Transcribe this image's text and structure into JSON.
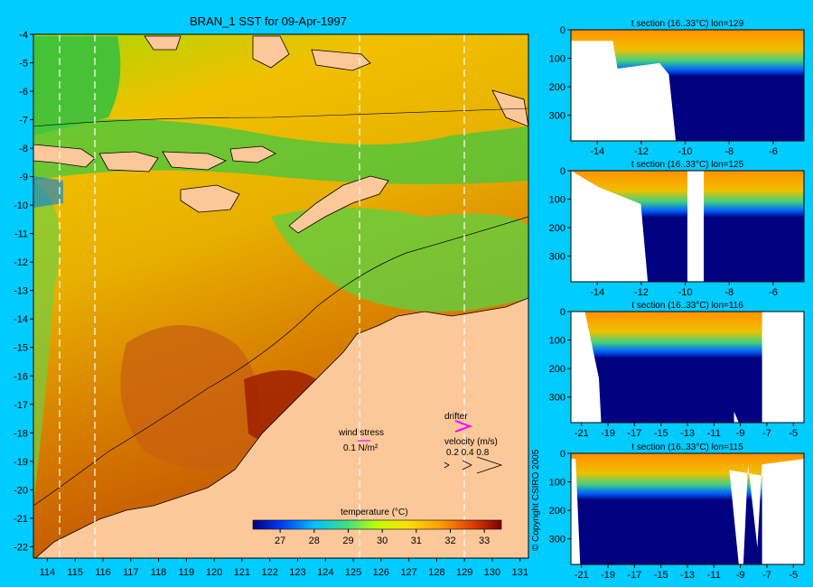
{
  "main_map": {
    "title": "BRAN_1 SST for 09-Apr-1997",
    "x_ticks": [
      "114",
      "115",
      "116",
      "117",
      "118",
      "119",
      "120",
      "121",
      "122",
      "123",
      "124",
      "125",
      "126",
      "127",
      "128",
      "129",
      "130",
      "131"
    ],
    "y_ticks": [
      "-4",
      "-5",
      "-6",
      "-7",
      "-8",
      "-9",
      "-10",
      "-11",
      "-12",
      "-13",
      "-14",
      "-15",
      "-16",
      "-17",
      "-18",
      "-19",
      "-20",
      "-21",
      "-22"
    ],
    "wind_stress_label": "wind stress",
    "wind_stress_value": "0.1 N/m²",
    "drifter_label": "drifter",
    "velocity_label": "velocity (m/s)",
    "velocity_values": "0.2 0.4 0.8",
    "colorbar_label": "temperature (°C)",
    "colorbar_ticks": [
      "27",
      "28",
      "29",
      "30",
      "31",
      "32",
      "33"
    ],
    "colors": {
      "land": "#fcc89a",
      "background": "#00ccff",
      "drifter": "#ff00ff"
    }
  },
  "sections": [
    {
      "title": "t section (16..33°C) lon=129",
      "x_ticks": [
        "-14",
        "-12",
        "-10",
        "-8",
        "-6"
      ],
      "y_ticks": [
        "0",
        "100",
        "200",
        "300"
      ]
    },
    {
      "title": "t section (16..33°C) lon=125",
      "x_ticks": [
        "-14",
        "-12",
        "-10",
        "-8",
        "-6"
      ],
      "y_ticks": [
        "0",
        "100",
        "200",
        "300"
      ]
    },
    {
      "title": "t section (16..33°C) lon=116",
      "x_ticks": [
        "-21",
        "-19",
        "-17",
        "-15",
        "-13",
        "-11",
        "-9",
        "-7",
        "-5"
      ],
      "y_ticks": [
        "0",
        "100",
        "200",
        "300"
      ]
    },
    {
      "title": "t section (16..33°C) lon=115",
      "x_ticks": [
        "-21",
        "-19",
        "-17",
        "-15",
        "-13",
        "-11",
        "-9",
        "-7",
        "-5"
      ],
      "y_ticks": [
        "0",
        "100",
        "200",
        "300"
      ]
    }
  ],
  "copyright": "© Copyright CSIRO 2005",
  "chart_data": [
    {
      "type": "heatmap",
      "title": "BRAN_1 SST for 09-Apr-1997",
      "xlim": [
        113.5,
        131.3
      ],
      "ylim": [
        -22.4,
        -4
      ],
      "x_ticks": [
        114,
        115,
        116,
        117,
        118,
        119,
        120,
        121,
        122,
        123,
        124,
        125,
        126,
        127,
        128,
        129,
        130,
        131
      ],
      "y_ticks": [
        -4,
        -5,
        -6,
        -7,
        -8,
        -9,
        -10,
        -11,
        -12,
        -13,
        -14,
        -15,
        -16,
        -17,
        -18,
        -19,
        -20,
        -21,
        -22
      ],
      "colorbar": {
        "label": "temperature (°C)",
        "range": [
          26.2,
          33.5
        ],
        "ticks": [
          27,
          28,
          29,
          30,
          31,
          32,
          33
        ]
      }
    },
    {
      "type": "heatmap",
      "title": "t section (16..33°C) lon=129",
      "xlim": [
        -15.2,
        -4.6
      ],
      "ylim": [
        390,
        0
      ],
      "x_ticks": [
        -14,
        -12,
        -10,
        -8,
        -6
      ],
      "y_ticks": [
        0,
        100,
        200,
        300
      ]
    },
    {
      "type": "heatmap",
      "title": "t section (16..33°C) lon=125",
      "xlim": [
        -15.2,
        -4.6
      ],
      "ylim": [
        390,
        0
      ],
      "x_ticks": [
        -14,
        -12,
        -10,
        -8,
        -6
      ],
      "y_ticks": [
        0,
        100,
        200,
        300
      ]
    },
    {
      "type": "heatmap",
      "title": "t section (16..33°C) lon=116",
      "xlim": [
        -21.8,
        -4.2
      ],
      "ylim": [
        390,
        0
      ],
      "x_ticks": [
        -21,
        -19,
        -17,
        -15,
        -13,
        -11,
        -9,
        -7,
        -5
      ],
      "y_ticks": [
        0,
        100,
        200,
        300
      ]
    },
    {
      "type": "heatmap",
      "title": "t section (16..33°C) lon=115",
      "xlim": [
        -21.8,
        -4.2
      ],
      "ylim": [
        390,
        0
      ],
      "x_ticks": [
        -21,
        -19,
        -17,
        -15,
        -13,
        -11,
        -9,
        -7,
        -5
      ],
      "y_ticks": [
        0,
        100,
        200,
        300
      ]
    }
  ]
}
